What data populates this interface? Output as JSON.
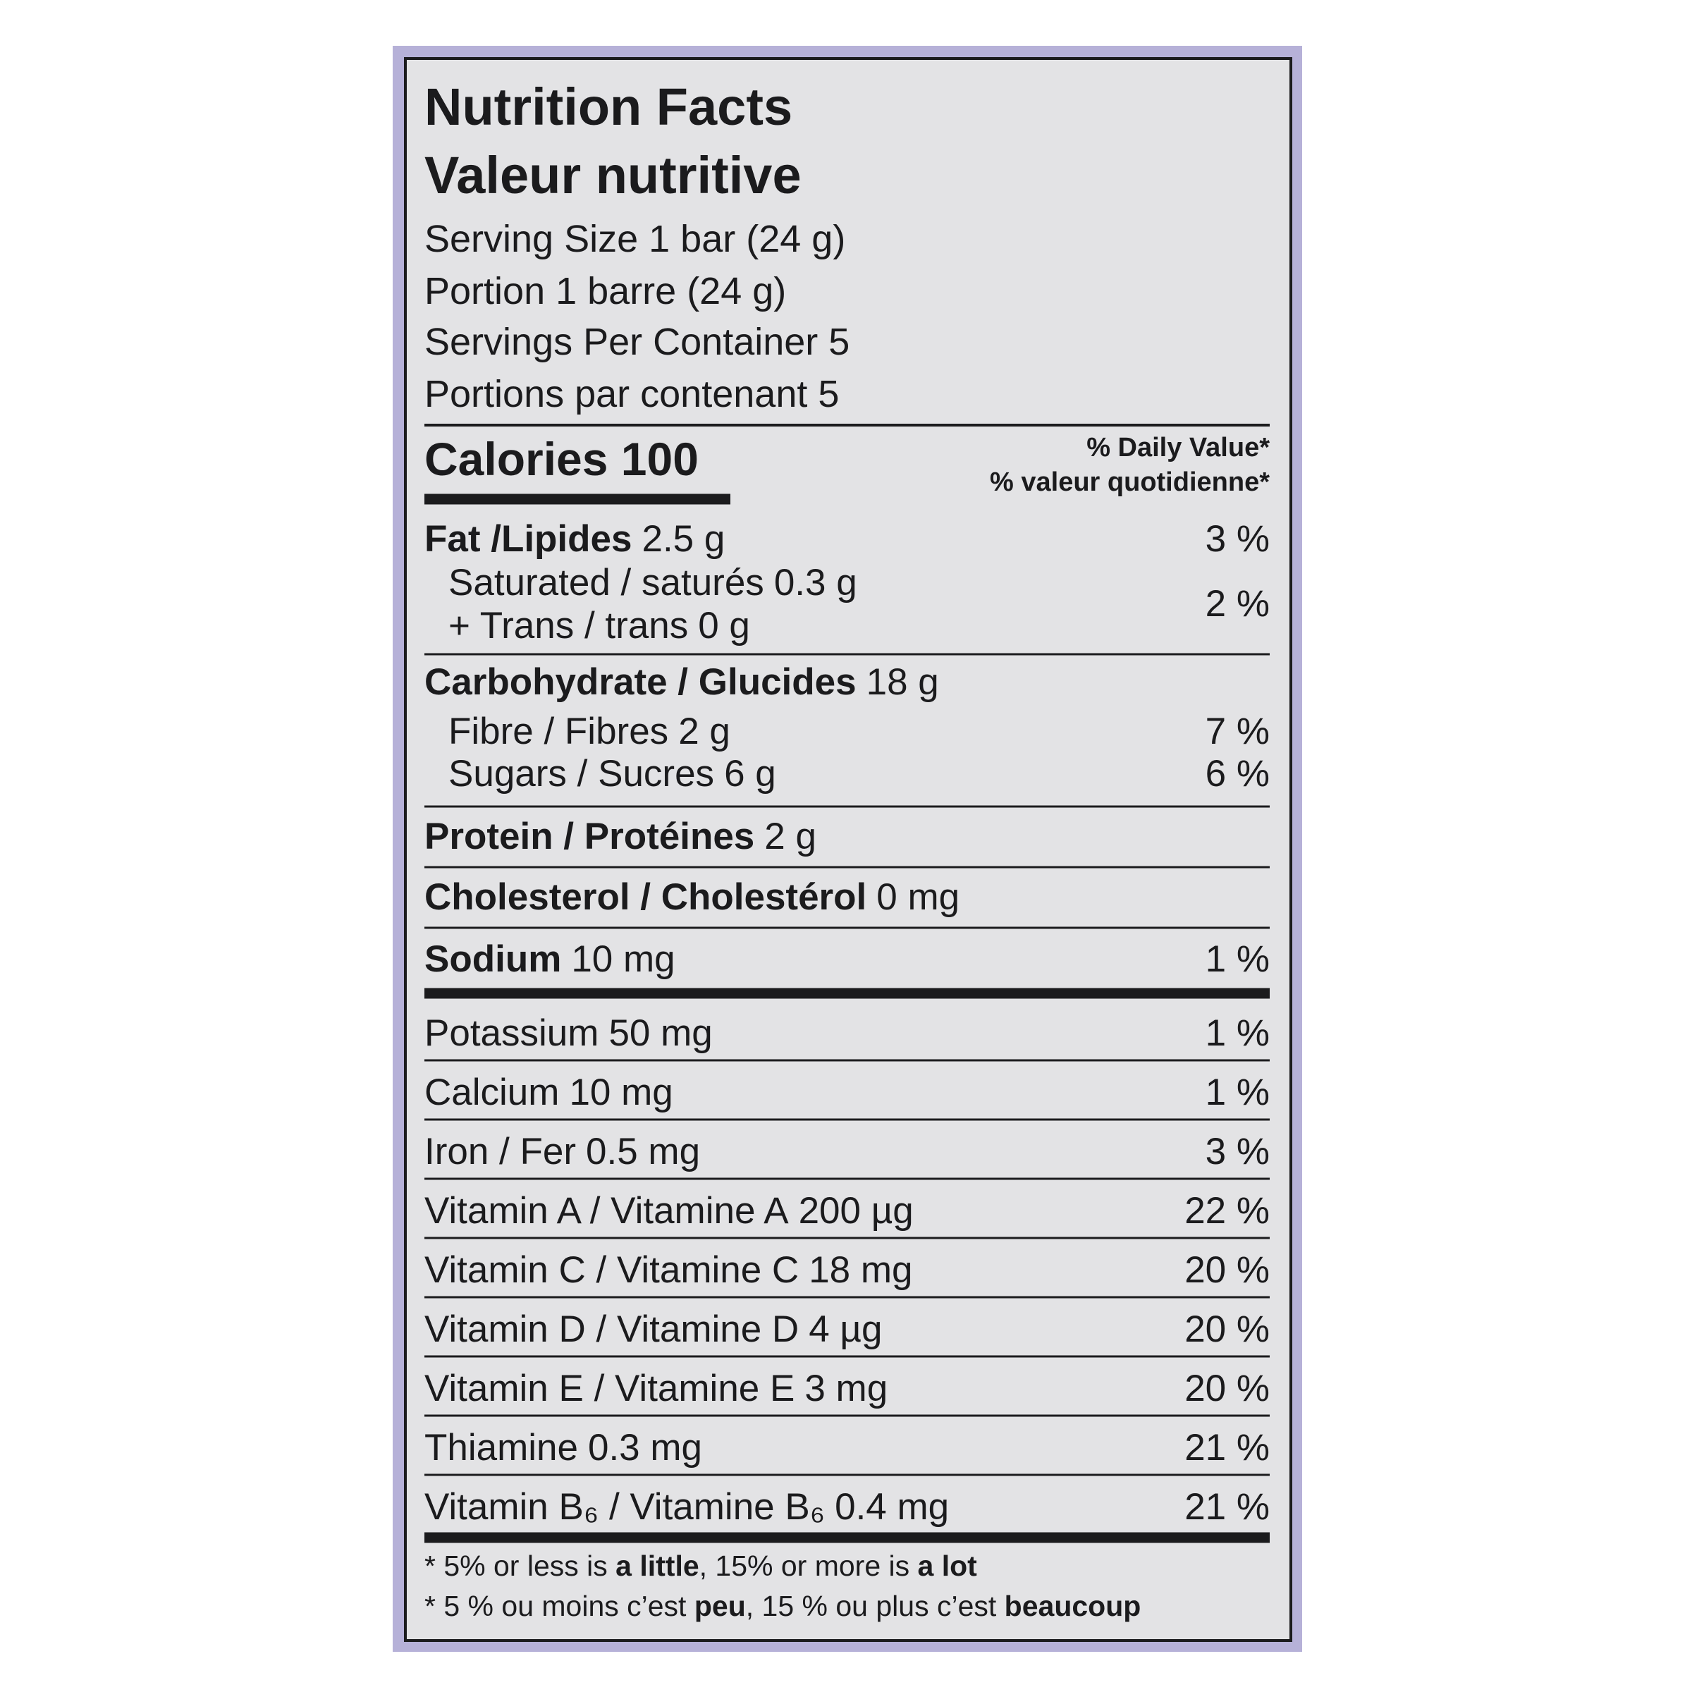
{
  "title": [
    "Nutrition Facts",
    "Valeur nutritive"
  ],
  "serving": [
    "Serving Size 1 bar (24 g)",
    "Portion 1 barre (24 g)",
    "Servings Per Container 5",
    "Portions par contenant 5"
  ],
  "calories": "Calories 100",
  "dv_header": [
    "% Daily Value*",
    "% valeur quotidienne*"
  ],
  "main": [
    {
      "name": "Fat /Lipides",
      "amount": "2.5 g",
      "dv": "3 %"
    },
    {
      "name": "Saturated / saturés",
      "amount": "0.3 g",
      "dv": "2 %",
      "sub": true
    },
    {
      "name": "+ Trans / trans",
      "amount": "0 g",
      "sub": true
    },
    {
      "name": "Carbohydrate / Glucides",
      "amount": "18 g"
    },
    {
      "name": "Fibre / Fibres",
      "amount": "2 g",
      "dv": "7 %",
      "sub": true
    },
    {
      "name": "Sugars / Sucres",
      "amount": "6 g",
      "dv": "6 %",
      "sub": true
    },
    {
      "name": "Protein / Protéines",
      "amount": "2 g"
    },
    {
      "name": "Cholesterol / Cholestérol",
      "amount": "0 mg"
    },
    {
      "name": "Sodium",
      "amount": "10 mg",
      "dv": "1 %"
    }
  ],
  "vitamins_minerals": [
    {
      "name": "Potassium",
      "amount": "50 mg",
      "dv": "1 %"
    },
    {
      "name": "Calcium",
      "amount": "10 mg",
      "dv": "1 %"
    },
    {
      "name": "Iron / Fer",
      "amount": "0.5 mg",
      "dv": "3 %"
    },
    {
      "name": "Vitamin A / Vitamine A",
      "amount": "200 µg",
      "dv": "22 %"
    },
    {
      "name": "Vitamin C / Vitamine C",
      "amount": "18 mg",
      "dv": "20 %"
    },
    {
      "name": "Vitamin D / Vitamine D",
      "amount": "4 µg",
      "dv": "20 %"
    },
    {
      "name": "Vitamin E / Vitamine E",
      "amount": "3 mg",
      "dv": "20 %"
    },
    {
      "name": "Thiamine",
      "amount": "0.3 mg",
      "dv": "21 %"
    },
    {
      "name": "Vitamin B₆ / Vitamine B₆",
      "amount": "0.4 mg",
      "dv": "21 %"
    }
  ],
  "footnotes": [
    [
      "* 5% or less is ",
      "a little",
      ", 15% or more is ",
      "a lot"
    ],
    [
      "* 5 % ou moins c’est ",
      "peu",
      ", 15 % ou plus c’est ",
      "beaucoup"
    ]
  ]
}
